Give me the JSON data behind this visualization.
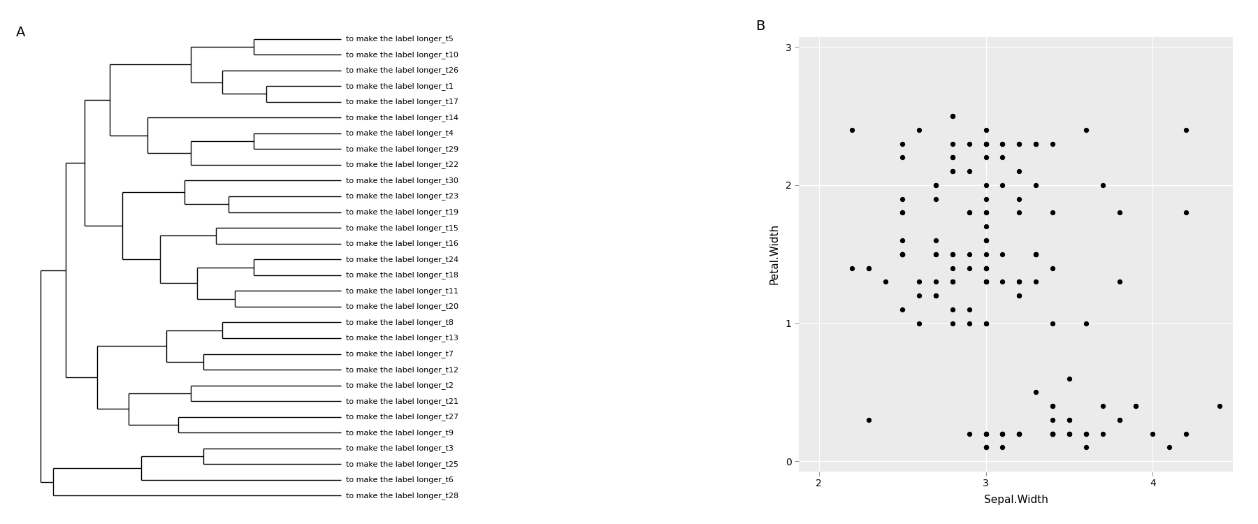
{
  "panel_A_label": "A",
  "panel_B_label": "B",
  "tree_labels": [
    "to make the label longer_t5",
    "to make the label longer_t10",
    "to make the label longer_t26",
    "to make the label longer_t1",
    "to make the label longer_t17",
    "to make the label longer_t14",
    "to make the label longer_t4",
    "to make the label longer_t29",
    "to make the label longer_t22",
    "to make the label longer_t30",
    "to make the label longer_t23",
    "to make the label longer_t19",
    "to make the label longer_t15",
    "to make the label longer_t16",
    "to make the label longer_t24",
    "to make the label longer_t18",
    "to make the label longer_t11",
    "to make the label longer_t20",
    "to make the label longer_t8",
    "to make the label longer_t13",
    "to make the label longer_t7",
    "to make the label longer_t12",
    "to make the label longer_t2",
    "to make the label longer_t21",
    "to make the label longer_t27",
    "to make the label longer_t9",
    "to make the label longer_t3",
    "to make the label longer_t25",
    "to make the label longer_t6",
    "to make the label longer_t28"
  ],
  "xlabel": "Sepal.Width",
  "ylabel": "Petal.Width",
  "xlim": [
    1.88,
    4.48
  ],
  "ylim": [
    -0.075,
    3.075
  ],
  "xticks": [
    2,
    3,
    4
  ],
  "yticks": [
    0,
    1,
    2,
    3
  ],
  "bg_color": "#ebebeb",
  "grid_color": "white",
  "dot_color": "black",
  "dot_size": 18,
  "line_color": "black",
  "line_width": 1.0,
  "label_fontsize": 8.0,
  "panel_label_fontsize": 14,
  "scatter_sw": [
    3.5,
    3.0,
    3.2,
    3.1,
    3.6,
    3.9,
    3.4,
    3.4,
    2.9,
    3.1,
    3.7,
    3.4,
    3.0,
    3.0,
    4.0,
    4.4,
    3.9,
    3.5,
    3.8,
    3.8,
    3.4,
    3.7,
    3.6,
    3.3,
    3.4,
    3.0,
    3.4,
    3.5,
    3.4,
    3.2,
    3.1,
    3.4,
    4.1,
    4.2,
    3.1,
    3.2,
    3.5,
    3.6,
    3.0,
    3.4,
    3.5,
    2.3,
    3.2,
    3.5,
    2.8,
    2.8,
    3.3,
    2.4,
    2.7,
    2.7,
    3.0,
    3.4,
    3.1,
    2.3,
    3.0,
    2.5,
    2.6,
    3.0,
    2.6,
    2.3,
    2.7,
    3.0,
    2.9,
    2.9,
    2.5,
    2.8,
    3.3,
    2.7,
    3.0,
    2.9,
    3.0,
    3.0,
    2.5,
    2.9,
    2.5,
    3.6,
    3.2,
    2.7,
    3.0,
    2.5,
    2.8,
    3.2,
    3.0,
    3.8,
    2.6,
    2.2,
    3.2,
    2.8,
    2.8,
    2.7,
    3.3,
    3.2,
    2.8,
    3.0,
    2.8,
    3.0,
    2.8,
    3.8,
    2.8,
    2.8,
    2.6,
    3.0,
    3.4,
    3.1,
    3.0,
    3.1,
    3.1,
    3.1,
    2.7,
    3.2,
    3.3,
    3.0,
    2.5,
    3.0,
    3.4,
    3.0,
    3.0,
    4.2,
    3.2,
    4.2,
    3.2,
    3.2,
    3.3,
    2.8,
    2.9,
    2.5,
    3.7,
    2.8,
    3.0,
    2.8,
    2.5,
    2.5,
    3.3,
    2.7,
    3.0,
    3.0,
    2.5,
    2.5,
    3.4,
    3.0,
    2.2,
    2.9,
    2.9,
    2.9,
    3.6,
    3.2,
    2.7,
    3.3,
    3.1,
    2.5
  ],
  "scatter_pw": [
    0.2,
    0.2,
    0.2,
    0.2,
    0.2,
    0.4,
    0.3,
    0.2,
    0.2,
    0.1,
    0.2,
    0.2,
    0.1,
    0.1,
    0.2,
    0.4,
    0.4,
    0.3,
    0.3,
    0.3,
    0.2,
    0.4,
    0.2,
    0.5,
    0.2,
    0.2,
    0.4,
    0.2,
    0.2,
    0.2,
    0.2,
    0.4,
    0.1,
    0.2,
    0.2,
    0.2,
    0.2,
    0.1,
    0.2,
    0.2,
    0.3,
    0.3,
    0.2,
    0.6,
    1.4,
    1.5,
    1.5,
    1.3,
    1.5,
    1.3,
    1.6,
    1.0,
    1.3,
    1.4,
    1.0,
    1.5,
    1.0,
    1.4,
    1.3,
    1.4,
    1.5,
    1.0,
    1.5,
    1.1,
    1.8,
    1.3,
    1.5,
    1.2,
    1.3,
    1.4,
    1.4,
    1.7,
    1.5,
    1.0,
    1.1,
    1.0,
    1.2,
    1.6,
    1.5,
    1.6,
    1.5,
    1.3,
    1.3,
    1.3,
    1.2,
    1.4,
    1.2,
    1.0,
    1.3,
    1.2,
    1.3,
    1.3,
    1.1,
    1.3,
    2.5,
    1.9,
    2.1,
    1.8,
    2.2,
    2.1,
    2.4,
    2.3,
    1.8,
    2.2,
    2.3,
    1.5,
    2.3,
    2.0,
    2.0,
    1.8,
    1.5,
    2.2,
    1.5,
    1.4,
    2.3,
    2.4,
    1.8,
    1.8,
    2.1,
    2.4,
    2.3,
    1.9,
    2.3,
    2.5,
    2.3,
    1.9,
    2.0,
    2.3,
    1.8,
    2.2,
    2.3,
    1.5,
    2.3,
    2.0,
    2.0,
    1.6,
    2.2,
    1.5,
    1.4,
    2.3,
    2.4,
    1.8,
    1.8,
    2.1,
    2.4,
    2.3,
    1.9,
    2.0,
    2.3,
    1.8
  ]
}
